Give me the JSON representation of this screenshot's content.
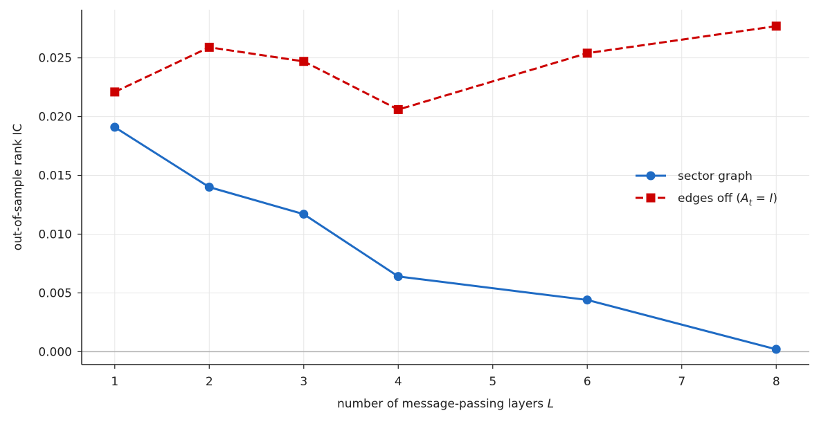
{
  "chart_data": {
    "type": "line",
    "xlabel": "number of message-passing layers ",
    "xlabel_var": "L",
    "ylabel": "out-of-sample rank IC",
    "xlim": [
      0.65,
      8.35
    ],
    "ylim": [
      -0.0011,
      0.0291
    ],
    "x_ticks": [
      1,
      2,
      3,
      4,
      5,
      6,
      7,
      8
    ],
    "y_ticks": [
      0.0,
      0.005,
      0.01,
      0.015,
      0.02,
      0.025
    ],
    "y_tick_labels": [
      "0.000",
      "0.005",
      "0.010",
      "0.015",
      "0.020",
      "0.025"
    ],
    "grid": true,
    "zero_line": true,
    "legend_position": "center-right",
    "series": [
      {
        "name": "sector graph",
        "color": "#1f6bc4",
        "marker": "circle",
        "linestyle": "solid",
        "x": [
          1,
          2,
          3,
          4,
          6,
          8
        ],
        "y": [
          0.0191,
          0.014,
          0.0117,
          0.0064,
          0.0044,
          0.0002
        ]
      },
      {
        "name": "edges off (A_t = I)",
        "name_parts": {
          "prefix": "edges off (",
          "var": "A",
          "sub": "t",
          "eq": " = ",
          "rhs": "I",
          "suffix": ")"
        },
        "color": "#cc0000",
        "marker": "square",
        "linestyle": "dashed",
        "x": [
          1,
          2,
          3,
          4,
          6,
          8
        ],
        "y": [
          0.0221,
          0.0259,
          0.0247,
          0.0206,
          0.0254,
          0.0277
        ]
      }
    ]
  }
}
